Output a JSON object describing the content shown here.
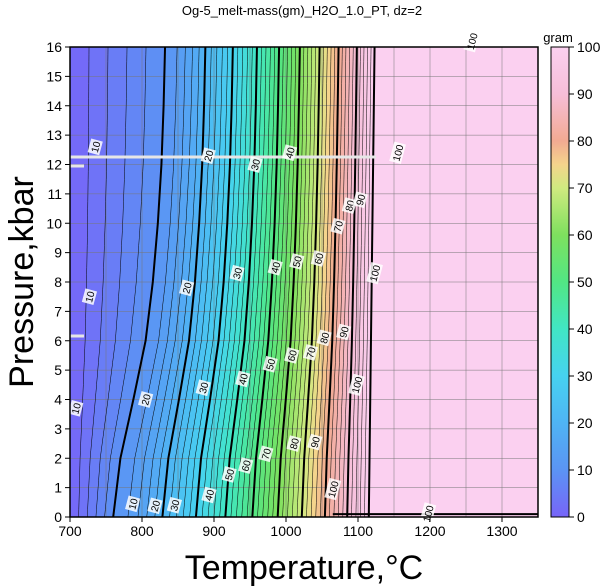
{
  "chart_data": {
    "type": "heatmap",
    "title": "Og-5_melt-mass(gm)_H2O_1.0_PT, dz=2",
    "xlabel": "Temperature,°C",
    "ylabel": "Pressure,kbar",
    "xlim": [
      700,
      1350
    ],
    "ylim": [
      0,
      16
    ],
    "x_ticks": [
      "700",
      "800",
      "900",
      "1000",
      "1100",
      "1200",
      "1300"
    ],
    "y_ticks": [
      "0",
      "1",
      "2",
      "3",
      "4",
      "5",
      "6",
      "7",
      "8",
      "9",
      "10",
      "11",
      "12",
      "13",
      "14",
      "15",
      "16"
    ],
    "grid": true,
    "colorbar": {
      "label": "gram",
      "range": [
        0,
        100
      ],
      "ticks": [
        "0",
        "10",
        "20",
        "30",
        "40",
        "50",
        "60",
        "70",
        "80",
        "90",
        "100"
      ]
    },
    "contour_interval": 2,
    "labeled_contours": [
      {
        "level": 10,
        "labels": [
          {
            "text": "10",
            "T": 735,
            "P": 12.6
          },
          {
            "text": "10",
            "T": 727,
            "P": 7.5
          },
          {
            "text": "10",
            "T": 708,
            "P": 3.7
          },
          {
            "text": "10",
            "T": 787,
            "P": 0.45
          }
        ]
      },
      {
        "level": 20,
        "labels": [
          {
            "text": "20",
            "T": 892,
            "P": 12.3
          },
          {
            "text": "20",
            "T": 862,
            "P": 7.8
          },
          {
            "text": "20",
            "T": 805,
            "P": 4.0
          },
          {
            "text": "20",
            "T": 818,
            "P": 0.38
          }
        ]
      },
      {
        "level": 30,
        "labels": [
          {
            "text": "30",
            "T": 957,
            "P": 12.0
          },
          {
            "text": "30",
            "T": 932,
            "P": 8.3
          },
          {
            "text": "30",
            "T": 885,
            "P": 4.4
          },
          {
            "text": "30",
            "T": 845,
            "P": 0.4
          }
        ]
      },
      {
        "level": 40,
        "labels": [
          {
            "text": "40",
            "T": 1005,
            "P": 12.4
          },
          {
            "text": "40",
            "T": 985,
            "P": 8.5
          },
          {
            "text": "40",
            "T": 940,
            "P": 4.7
          },
          {
            "text": "40",
            "T": 893,
            "P": 0.75
          }
        ]
      },
      {
        "level": 50,
        "labels": [
          {
            "text": "50",
            "T": 1015,
            "P": 8.7
          },
          {
            "text": "50",
            "T": 978,
            "P": 5.2
          },
          {
            "text": "50",
            "T": 921,
            "P": 1.45
          }
        ]
      },
      {
        "level": 60,
        "labels": [
          {
            "text": "60",
            "T": 1045,
            "P": 8.8
          },
          {
            "text": "60",
            "T": 1008,
            "P": 5.5
          },
          {
            "text": "60",
            "T": 944,
            "P": 1.75
          }
        ]
      },
      {
        "level": 70,
        "labels": [
          {
            "text": "70",
            "T": 1072,
            "P": 9.9
          },
          {
            "text": "70",
            "T": 1034,
            "P": 5.6
          },
          {
            "text": "70",
            "T": 972,
            "P": 2.15
          }
        ]
      },
      {
        "level": 80,
        "labels": [
          {
            "text": "80",
            "T": 1088,
            "P": 10.6
          },
          {
            "text": "80",
            "T": 1053,
            "P": 6.1
          },
          {
            "text": "80",
            "T": 1011,
            "P": 2.5
          }
        ]
      },
      {
        "level": 90,
        "labels": [
          {
            "text": "90",
            "T": 1103,
            "P": 10.8
          },
          {
            "text": "90",
            "T": 1080,
            "P": 6.3
          },
          {
            "text": "90",
            "T": 1040,
            "P": 2.55
          }
        ]
      },
      {
        "level": 100,
        "labels": [
          {
            "text": "100",
            "T": 1258,
            "P": 16.2
          },
          {
            "text": "100",
            "T": 1155,
            "P": 12.4
          },
          {
            "text": "100",
            "T": 1123,
            "P": 8.3
          },
          {
            "text": "100",
            "T": 1098,
            "P": 4.5
          },
          {
            "text": "100",
            "T": 1065,
            "P": 0.95
          },
          {
            "text": "100",
            "T": 1197,
            "P": 0.12
          }
        ]
      }
    ]
  }
}
